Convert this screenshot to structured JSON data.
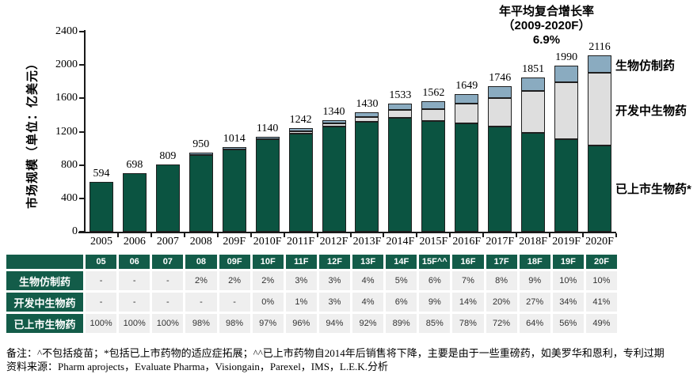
{
  "chart_data": {
    "type": "bar",
    "stacked": true,
    "title": "年平均复合增长率（2009-2020F） 6.9%",
    "title_lines": [
      "年平均复合增长率",
      "（2009-2020F）",
      "6.9%"
    ],
    "ylabel": "市场规模（单位：亿美元）",
    "ylim": [
      0,
      2400
    ],
    "yticks": [
      0,
      400,
      800,
      1200,
      1600,
      2000,
      2400
    ],
    "grid": false,
    "legend_position": "right",
    "categories": [
      "2005",
      "2006",
      "2007",
      "2008",
      "209F",
      "2010F",
      "2011F",
      "2012F",
      "2013F",
      "2014F",
      "2015F",
      "2016F",
      "2017F",
      "2018F",
      "2019F",
      "2020F"
    ],
    "totals": [
      594,
      698,
      809,
      950,
      1014,
      1140,
      1242,
      1340,
      1430,
      1533,
      1562,
      1649,
      1746,
      1851,
      1990,
      2116
    ],
    "series": [
      {
        "name": "生物仿制药",
        "color": "#8aabc0",
        "percent": [
          null,
          null,
          null,
          2,
          2,
          2,
          3,
          3,
          4,
          5,
          6,
          7,
          8,
          9,
          10,
          10
        ]
      },
      {
        "name": "开发中生物药",
        "color": "#dedede",
        "percent": [
          null,
          null,
          null,
          null,
          null,
          0,
          1,
          3,
          4,
          6,
          9,
          14,
          20,
          27,
          34,
          41
        ]
      },
      {
        "name": "已上市生物药*",
        "color": "#0b5441",
        "percent": [
          100,
          100,
          100,
          98,
          98,
          97,
          96,
          94,
          92,
          89,
          85,
          78,
          72,
          64,
          56,
          49
        ]
      }
    ]
  },
  "legend": {
    "biosimilar": "生物仿制药",
    "in_development": "开发中生物药",
    "marketed": "已上市生物药*"
  },
  "table": {
    "col_headers": [
      "05",
      "06",
      "07",
      "08",
      "09F",
      "10F",
      "11F",
      "12F",
      "13F",
      "14F",
      "15F^^",
      "16F",
      "17F",
      "18F",
      "19F",
      "20F"
    ],
    "rows": [
      {
        "label": "生物仿制药",
        "values": [
          "-",
          "-",
          "-",
          "2%",
          "2%",
          "2%",
          "3%",
          "3%",
          "4%",
          "5%",
          "6%",
          "7%",
          "8%",
          "9%",
          "10%",
          "10%"
        ]
      },
      {
        "label": "开发中生物药",
        "values": [
          "-",
          "-",
          "-",
          "-",
          "-",
          "0%",
          "1%",
          "3%",
          "4%",
          "6%",
          "9%",
          "14%",
          "20%",
          "27%",
          "34%",
          "41%"
        ]
      },
      {
        "label": "已上市生物药",
        "values": [
          "100%",
          "100%",
          "100%",
          "98%",
          "98%",
          "97%",
          "96%",
          "94%",
          "92%",
          "89%",
          "85%",
          "78%",
          "72%",
          "64%",
          "56%",
          "49%"
        ]
      }
    ]
  },
  "notes": {
    "remark": "备注：^不包括疫苗；*包括已上市药物的适应症拓展；^^已上市药物自2014年后销售将下降，主要是由于一些重磅药，如美罗华和恩利，专利过期",
    "source": "资料来源：Pharm aprojects，Evaluate Pharma，Visiongain，Parexel，IMS，L.E.K.分析"
  },
  "colors": {
    "bar_marketed": "#0b5441",
    "bar_in_development": "#dedede",
    "bar_biosimilar": "#8aabc0",
    "bar_outline": "#1f1f1f",
    "table_green": "#135c49",
    "table_cell_bg": "#efefef"
  }
}
